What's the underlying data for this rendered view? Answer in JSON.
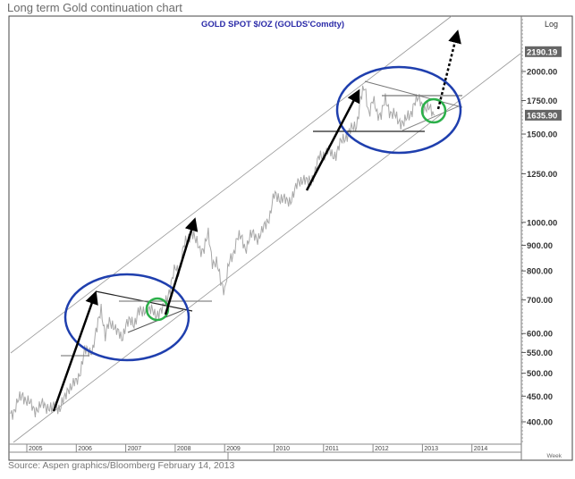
{
  "page_title": "Long term  Gold continuation chart",
  "source": "Source: Aspen graphics/Bloomberg February 14, 2013",
  "chart_data": {
    "type": "line",
    "title": "GOLD  SPOT  $/OZ  (GOLDS'Comdty)",
    "scale_label": "Log",
    "period_label": "Week",
    "yscale": "log",
    "ylim": [
      360,
      2400
    ],
    "y_ticks": [
      "400.00",
      "450.00",
      "500.00",
      "550.00",
      "600.00",
      "700.00",
      "800.00",
      "900.00",
      "1000.00",
      "1250.00",
      "1500.00",
      "1750.00",
      "2000.00"
    ],
    "y_tick_values": [
      400,
      450,
      500,
      550,
      600,
      700,
      800,
      900,
      1000,
      1250,
      1500,
      1750,
      2000
    ],
    "highlighted_values": [
      {
        "label": "2190.19",
        "value": 2190.19
      },
      {
        "label": "1635.90",
        "value": 1635.9
      }
    ],
    "x_ticks": [
      "2005",
      "2006",
      "2007",
      "2008",
      "2009",
      "2010",
      "2011",
      "2012",
      "2013",
      "2014"
    ],
    "x_tick_values": [
      2005,
      2006,
      2007,
      2008,
      2009,
      2010,
      2011,
      2012,
      2013,
      2014
    ],
    "xlim": [
      2004.67,
      2014.9
    ],
    "series": [
      {
        "name": "Gold spot $/oz",
        "start": 2004.67,
        "step_years": 0.0833,
        "values": [
          415,
          425,
          440,
          455,
          440,
          430,
          425,
          425,
          435,
          430,
          420,
          435,
          425,
          440,
          470,
          470,
          480,
          510,
          550,
          555,
          560,
          610,
          680,
          590,
          630,
          630,
          600,
          585,
          630,
          630,
          630,
          665,
          655,
          680,
          665,
          655,
          665,
          665,
          710,
          755,
          805,
          805,
          890,
          920,
          970,
          910,
          885,
          890,
          940,
          840,
          830,
          760,
          740,
          820,
          860,
          940,
          925,
          890,
          930,
          945,
          935,
          950,
          995,
          1040,
          1125,
          1130,
          1115,
          1095,
          1115,
          1150,
          1205,
          1230,
          1195,
          1215,
          1270,
          1345,
          1370,
          1390,
          1360,
          1375,
          1425,
          1475,
          1510,
          1530,
          1570,
          1760,
          1850,
          1665,
          1740,
          1650,
          1655,
          1740,
          1675,
          1650,
          1585,
          1595,
          1595,
          1630,
          1745,
          1750,
          1720,
          1690,
          1670,
          1635.9
        ]
      }
    ]
  }
}
